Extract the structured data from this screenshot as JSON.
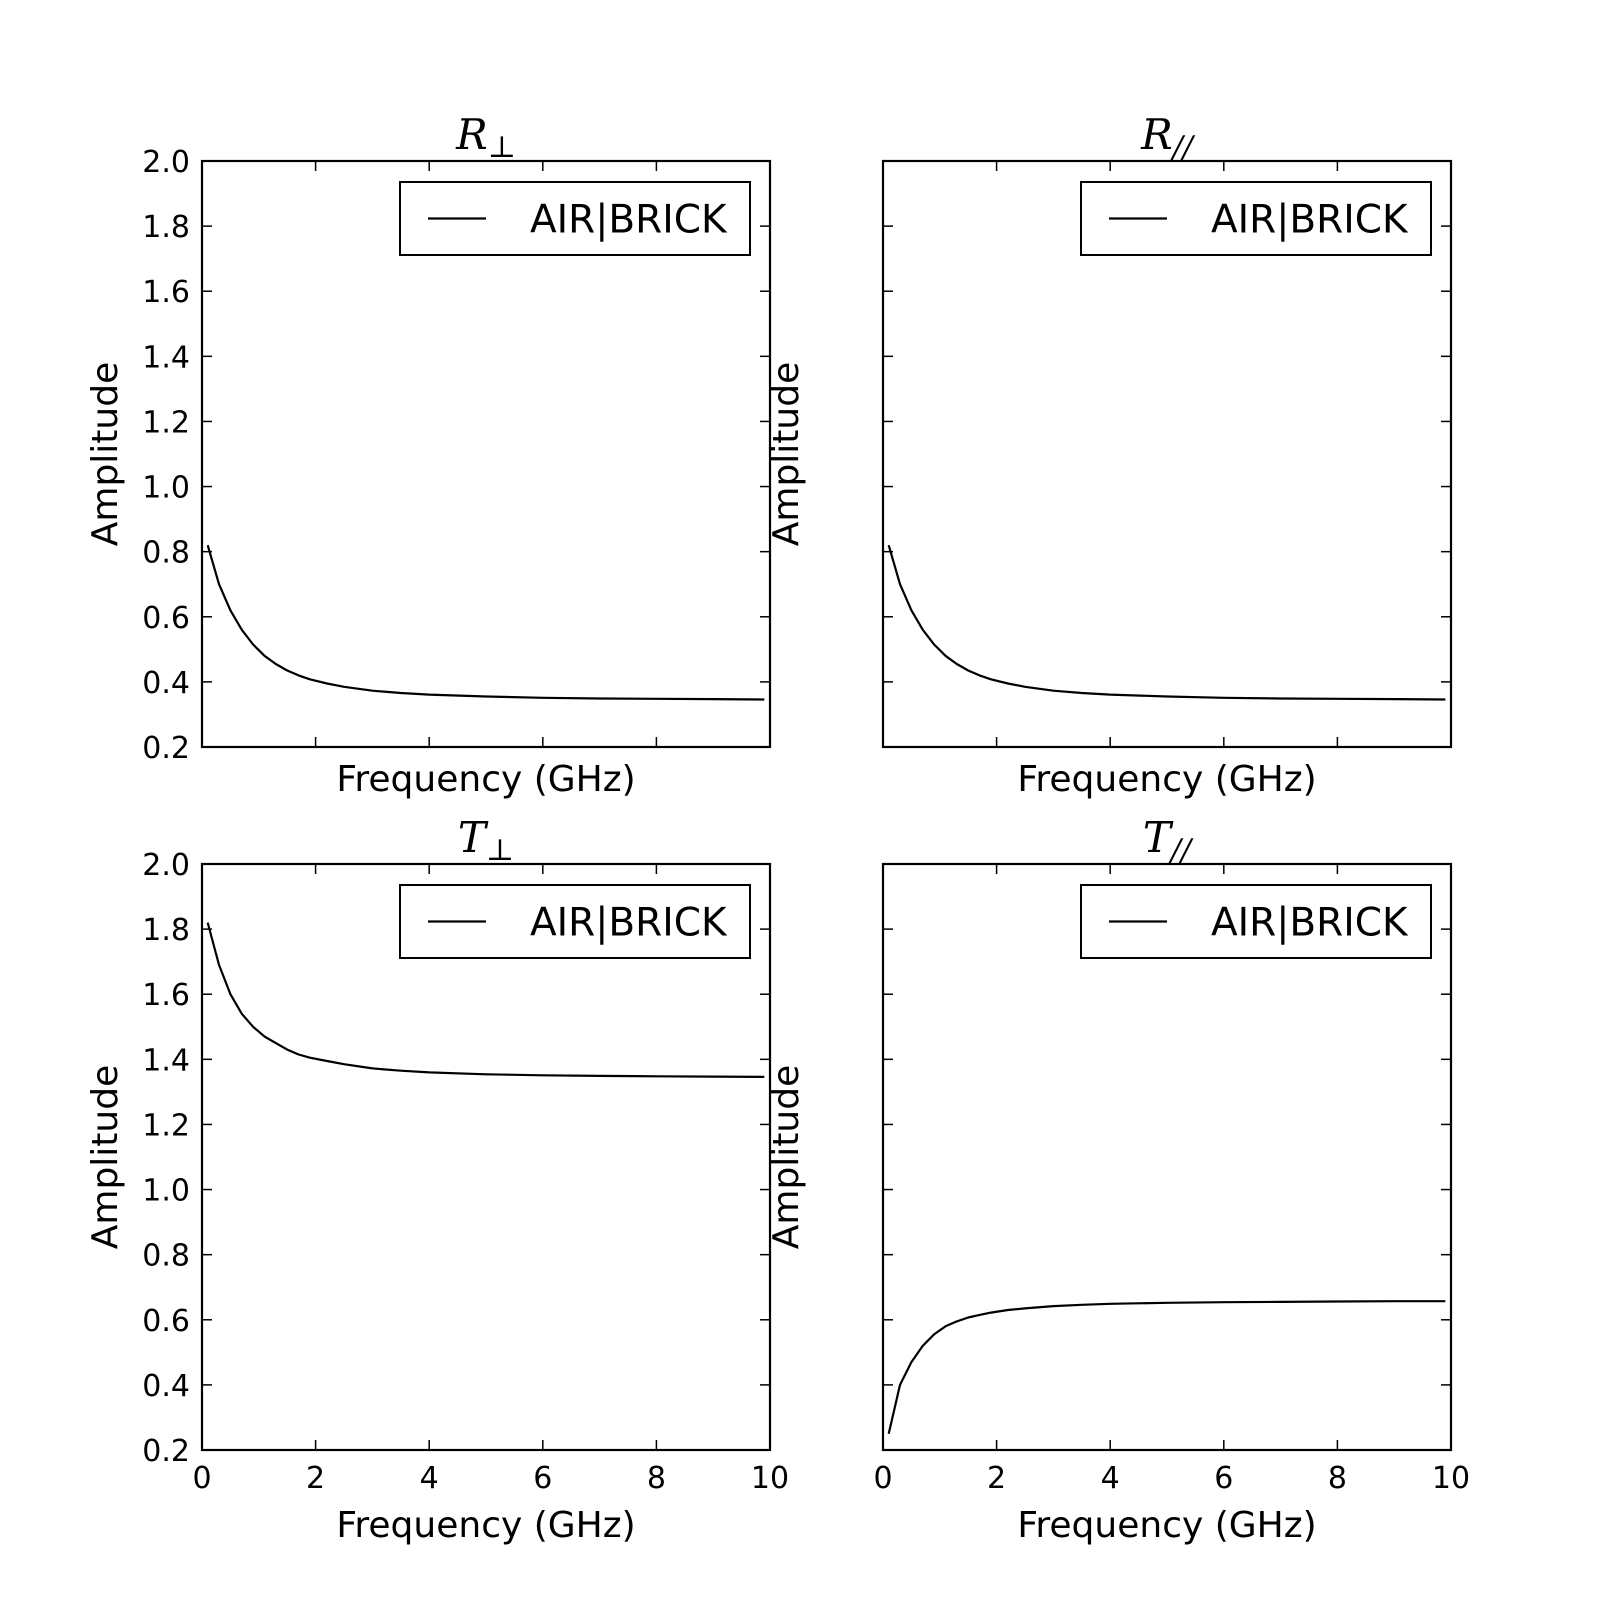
{
  "chart_data": [
    {
      "type": "line",
      "title": "R",
      "title_subscript": "⊥",
      "xlabel": "Frequency (GHz)",
      "ylabel": "Amplitude",
      "xlim": [
        0,
        10
      ],
      "ylim": [
        0.2,
        2.0
      ],
      "x_ticks": [
        0,
        2,
        4,
        6,
        8,
        10
      ],
      "y_ticks": [
        0.2,
        0.4,
        0.6,
        0.8,
        1.0,
        1.2,
        1.4,
        1.6,
        1.8,
        2.0
      ],
      "show_x_tick_labels": false,
      "show_y_tick_labels": true,
      "legend_location": "upper right",
      "grid": false,
      "series": [
        {
          "name": "AIR|BRICK",
          "color": "#000000",
          "x": [
            0.1,
            0.3,
            0.5,
            0.7,
            0.9,
            1.1,
            1.3,
            1.5,
            1.7,
            1.9,
            2.2,
            2.5,
            3.0,
            3.5,
            4.0,
            5.0,
            6.0,
            7.0,
            8.0,
            9.0,
            9.9
          ],
          "y": [
            0.82,
            0.7,
            0.62,
            0.56,
            0.515,
            0.48,
            0.455,
            0.435,
            0.42,
            0.408,
            0.395,
            0.385,
            0.373,
            0.366,
            0.361,
            0.355,
            0.351,
            0.349,
            0.348,
            0.347,
            0.346
          ]
        }
      ]
    },
    {
      "type": "line",
      "title": "R",
      "title_subscript": "//",
      "xlabel": "Frequency (GHz)",
      "ylabel": "Amplitude",
      "xlim": [
        0,
        10
      ],
      "ylim": [
        0.2,
        2.0
      ],
      "x_ticks": [
        0,
        2,
        4,
        6,
        8,
        10
      ],
      "y_ticks": [
        0.2,
        0.4,
        0.6,
        0.8,
        1.0,
        1.2,
        1.4,
        1.6,
        1.8,
        2.0
      ],
      "show_x_tick_labels": false,
      "show_y_tick_labels": false,
      "legend_location": "upper right",
      "grid": false,
      "series": [
        {
          "name": "AIR|BRICK",
          "color": "#000000",
          "x": [
            0.1,
            0.3,
            0.5,
            0.7,
            0.9,
            1.1,
            1.3,
            1.5,
            1.7,
            1.9,
            2.2,
            2.5,
            3.0,
            3.5,
            4.0,
            5.0,
            6.0,
            7.0,
            8.0,
            9.0,
            9.9
          ],
          "y": [
            0.82,
            0.7,
            0.62,
            0.56,
            0.515,
            0.48,
            0.455,
            0.435,
            0.42,
            0.408,
            0.395,
            0.385,
            0.373,
            0.366,
            0.361,
            0.355,
            0.351,
            0.349,
            0.348,
            0.347,
            0.346
          ]
        }
      ]
    },
    {
      "type": "line",
      "title": "T",
      "title_subscript": "⊥",
      "xlabel": "Frequency (GHz)",
      "ylabel": "Amplitude",
      "xlim": [
        0,
        10
      ],
      "ylim": [
        0.2,
        2.0
      ],
      "x_ticks": [
        0,
        2,
        4,
        6,
        8,
        10
      ],
      "y_ticks": [
        0.2,
        0.4,
        0.6,
        0.8,
        1.0,
        1.2,
        1.4,
        1.6,
        1.8,
        2.0
      ],
      "show_x_tick_labels": true,
      "show_y_tick_labels": true,
      "legend_location": "upper right",
      "grid": false,
      "series": [
        {
          "name": "AIR|BRICK",
          "color": "#000000",
          "x": [
            0.1,
            0.3,
            0.5,
            0.7,
            0.9,
            1.1,
            1.3,
            1.5,
            1.7,
            1.9,
            2.2,
            2.5,
            3.0,
            3.5,
            4.0,
            5.0,
            6.0,
            7.0,
            8.0,
            9.0,
            9.9
          ],
          "y": [
            1.82,
            1.69,
            1.6,
            1.54,
            1.5,
            1.47,
            1.45,
            1.43,
            1.415,
            1.405,
            1.395,
            1.385,
            1.372,
            1.365,
            1.36,
            1.354,
            1.351,
            1.349,
            1.348,
            1.347,
            1.346
          ]
        }
      ]
    },
    {
      "type": "line",
      "title": "T",
      "title_subscript": "//",
      "xlabel": "Frequency (GHz)",
      "ylabel": "Amplitude",
      "xlim": [
        0,
        10
      ],
      "ylim": [
        0.2,
        2.0
      ],
      "x_ticks": [
        0,
        2,
        4,
        6,
        8,
        10
      ],
      "y_ticks": [
        0.2,
        0.4,
        0.6,
        0.8,
        1.0,
        1.2,
        1.4,
        1.6,
        1.8,
        2.0
      ],
      "show_x_tick_labels": true,
      "show_y_tick_labels": false,
      "legend_location": "upper right",
      "grid": false,
      "series": [
        {
          "name": "AIR|BRICK",
          "color": "#000000",
          "x": [
            0.1,
            0.3,
            0.5,
            0.7,
            0.9,
            1.1,
            1.3,
            1.5,
            1.7,
            1.9,
            2.2,
            2.5,
            3.0,
            3.5,
            4.0,
            5.0,
            6.0,
            7.0,
            8.0,
            9.0,
            9.9
          ],
          "y": [
            0.25,
            0.4,
            0.47,
            0.52,
            0.555,
            0.58,
            0.595,
            0.607,
            0.615,
            0.622,
            0.63,
            0.635,
            0.642,
            0.646,
            0.649,
            0.652,
            0.654,
            0.655,
            0.656,
            0.657,
            0.657
          ]
        }
      ]
    }
  ]
}
